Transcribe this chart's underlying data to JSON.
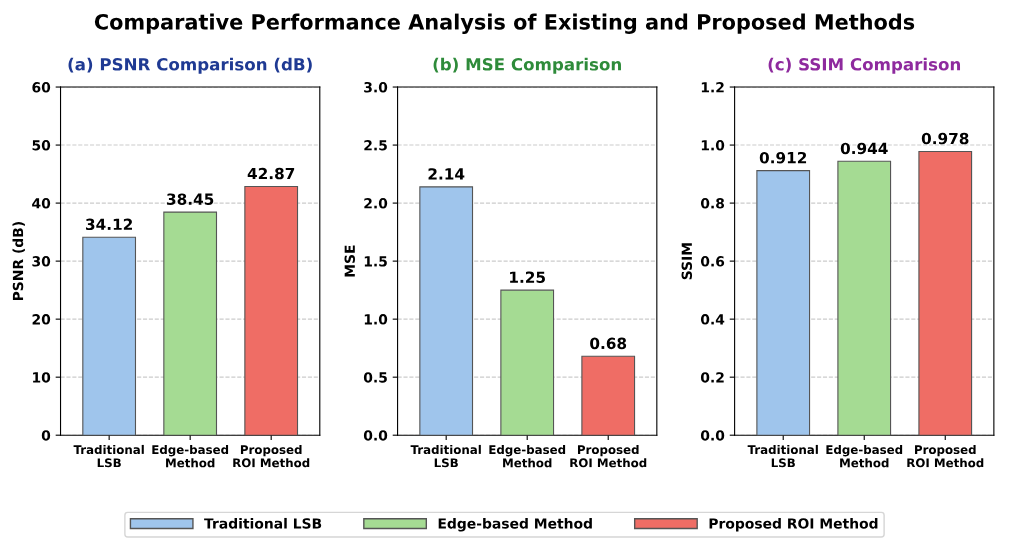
{
  "chart_data": [
    {
      "type": "bar",
      "stacked": true,
      "title": "(a) PSNR Comparison (dB)",
      "ylabel": "PSNR (dB)",
      "annotations": [
        "Comparative Performance Analysis of Existing and Proposed Methods"
      ],
      "categories": [
        "Traditional\nLSB",
        "Edge-based\nMethod",
        "Proposed\nROI Method"
      ],
      "series": [
        {
          "name": "Traditional LSB",
          "color": "#9fc5ec",
          "values": [
            34.12,
            null,
            null
          ]
        },
        {
          "name": "Edge-based Method",
          "color": "#a5db93",
          "values": [
            null,
            38.45,
            null
          ]
        },
        {
          "name": "Proposed ROI Method",
          "color": "#ef6d65",
          "values": [
            null,
            null,
            42.87
          ]
        }
      ],
      "ylim": [
        0,
        60
      ],
      "yticks": [
        0,
        10,
        20,
        30,
        40,
        50,
        60
      ],
      "grid": "y",
      "data_labels": true,
      "legend": "bottom"
    },
    {
      "type": "bar",
      "stacked": true,
      "title": "(b) MSE Comparison",
      "ylabel": "MSE",
      "categories": [
        "Traditional\nLSB",
        "Edge-based\nMethod",
        "Proposed\nROI Method"
      ],
      "series": [
        {
          "color": "#9fc5ec",
          "values": [
            2.14,
            null,
            null
          ]
        },
        {
          "color": "#a5db93",
          "values": [
            null,
            1.25,
            null
          ]
        },
        {
          "color": "#ef6d65",
          "values": [
            null,
            null,
            0.68
          ]
        }
      ],
      "ylim": [
        0,
        3.0
      ],
      "yticks": [
        {
          "value": 0,
          "label": "0.0"
        },
        {
          "value": 0.5,
          "label": "0.5"
        },
        {
          "value": 1.0,
          "label": "1.0"
        },
        {
          "value": 1.5,
          "label": "1.5"
        },
        {
          "value": 2.0,
          "label": "2.0"
        },
        {
          "value": 2.5,
          "label": "2.5"
        },
        {
          "value": 3.0,
          "label": "3.0"
        }
      ],
      "grid": "y",
      "data_labels": true
    },
    {
      "type": "bar",
      "stacked": true,
      "title": "(c) SSIM Comparison",
      "ylabel": "SSIM",
      "categories": [
        "Traditional\nLSB",
        "Edge-based\nMethod",
        "Proposed\nROI Method"
      ],
      "series": [
        {
          "color": "#9fc5ec",
          "values": [
            0.912,
            null,
            null
          ]
        },
        {
          "color": "#a5db93",
          "values": [
            null,
            0.944,
            null
          ]
        },
        {
          "color": "#ef6d65",
          "values": [
            null,
            null,
            0.978
          ]
        }
      ],
      "ylim": [
        0,
        1.2
      ],
      "yticks": [
        {
          "value": 0,
          "label": "0.0"
        },
        {
          "value": 0.2,
          "label": "0.2"
        },
        {
          "value": 0.4,
          "label": "0.4"
        },
        {
          "value": 0.6,
          "label": "0.6"
        },
        {
          "value": 0.8,
          "label": "0.8"
        },
        {
          "value": 1.0,
          "label": "1.0"
        },
        {
          "value": 1.2,
          "label": "1.2"
        }
      ],
      "grid": "y",
      "data_labels": true
    }
  ]
}
